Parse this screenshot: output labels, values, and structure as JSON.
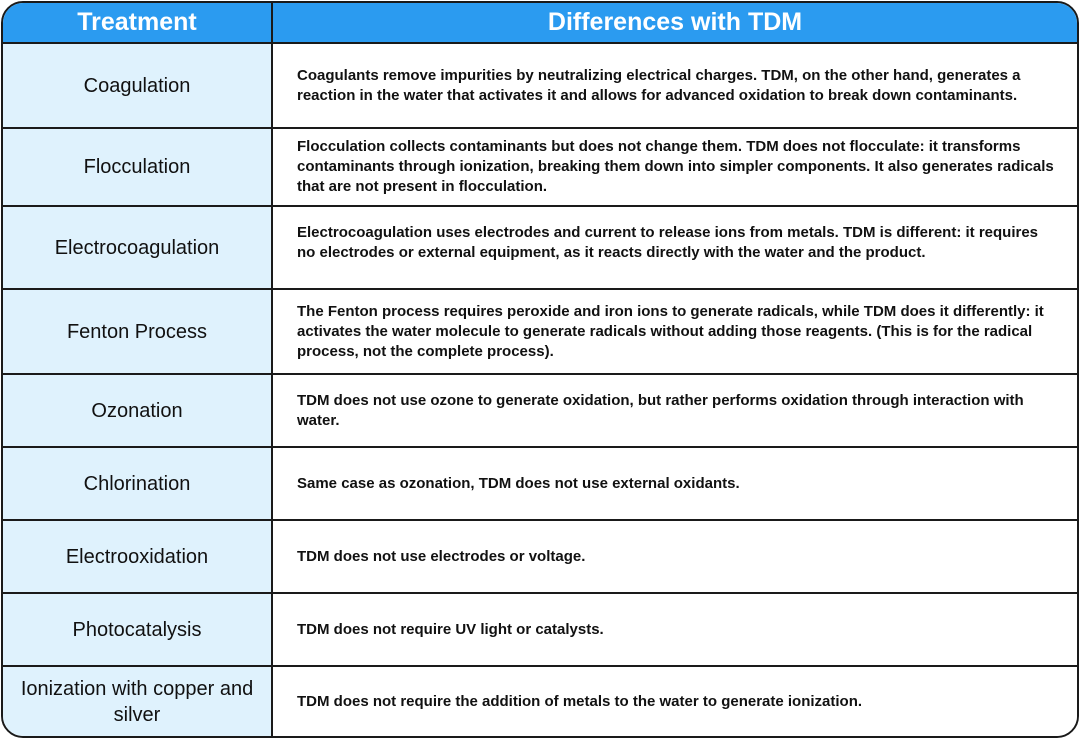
{
  "header": {
    "treatment": "Treatment",
    "differences": "Differences with TDM"
  },
  "rows": [
    {
      "treatment": "Coagulation",
      "difference": "Coagulants remove impurities by neutralizing electrical charges. TDM, on the other hand, generates a reaction in the water that activates it and allows for advanced oxidation to break down contaminants."
    },
    {
      "treatment": "Flocculation",
      "difference": "Flocculation collects contaminants but does not change them. TDM does not flocculate: it transforms contaminants through ionization, breaking them down into simpler components. It also generates radicals that are not present in flocculation."
    },
    {
      "treatment": "Electrocoagulation",
      "difference": "Electrocoagulation uses electrodes and current to release ions from metals. TDM is different: it requires no electrodes or external equipment, as it reacts directly with the water and the product."
    },
    {
      "treatment": "Fenton Process",
      "difference": "The Fenton process requires peroxide and iron ions to generate radicals, while TDM does it differently: it activates the water molecule to generate radicals without adding those reagents. (This is for the radical process, not the complete process)."
    },
    {
      "treatment": "Ozonation",
      "difference": "TDM does not use ozone to generate oxidation, but rather performs oxidation through interaction with water."
    },
    {
      "treatment": "Chlorination",
      "difference": "Same case as ozonation, TDM does not use external oxidants."
    },
    {
      "treatment": "Electrooxidation",
      "difference": "TDM does not use electrodes or voltage."
    },
    {
      "treatment": "Photocatalysis",
      "difference": "TDM does not require UV light or catalysts."
    },
    {
      "treatment": "Ionization with copper and silver",
      "difference": "TDM does not require the addition of metals to the water to generate ionization."
    }
  ],
  "colors": {
    "header_bg": "#2b9bf0",
    "treatment_bg": "#dff2fd",
    "border": "#1a1a1a"
  }
}
